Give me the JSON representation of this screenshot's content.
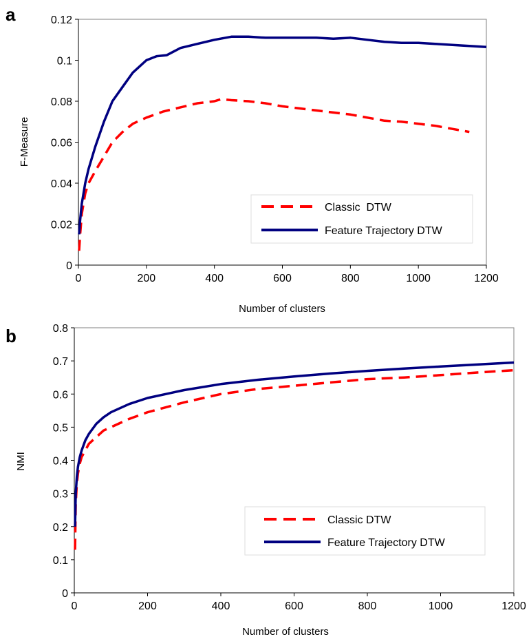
{
  "chart_data": [
    {
      "type": "line",
      "panel_label": "a",
      "title": "",
      "xlabel": "Number of clusters",
      "ylabel": "F-Measure",
      "xlim": [
        0,
        1200
      ],
      "ylim": [
        0,
        0.12
      ],
      "x_ticks": [
        "0",
        "200",
        "400",
        "600",
        "800",
        "1000",
        "1200"
      ],
      "y_ticks": [
        "0",
        "0.02",
        "0.04",
        "0.06",
        "0.08",
        "0.1",
        "0.12"
      ],
      "grid": false,
      "legend": {
        "position": "lower-right",
        "entries": [
          "Classic  DTW",
          "Feature Trajectory DTW"
        ]
      },
      "series": [
        {
          "name": "Classic  DTW",
          "color": "#ff0000",
          "style": "dashed",
          "x": [
            2,
            5,
            10,
            20,
            30,
            50,
            75,
            100,
            130,
            160,
            200,
            250,
            300,
            350,
            400,
            420,
            450,
            500,
            550,
            600,
            650,
            700,
            750,
            800,
            850,
            900,
            950,
            1000,
            1050,
            1100,
            1150
          ],
          "y": [
            0.007,
            0.015,
            0.025,
            0.035,
            0.04,
            0.046,
            0.053,
            0.06,
            0.065,
            0.069,
            0.072,
            0.075,
            0.077,
            0.079,
            0.08,
            0.081,
            0.0805,
            0.08,
            0.079,
            0.0775,
            0.0765,
            0.0755,
            0.0745,
            0.0735,
            0.072,
            0.0705,
            0.07,
            0.069,
            0.068,
            0.0665,
            0.065
          ]
        },
        {
          "name": "Feature Trajectory DTW",
          "color": "#000080",
          "style": "solid",
          "x": [
            2,
            5,
            10,
            20,
            30,
            50,
            75,
            100,
            130,
            160,
            200,
            230,
            260,
            300,
            350,
            400,
            450,
            500,
            550,
            600,
            650,
            700,
            750,
            800,
            850,
            900,
            950,
            1000,
            1050,
            1100,
            1150,
            1200
          ],
          "y": [
            0.015,
            0.022,
            0.03,
            0.04,
            0.047,
            0.058,
            0.07,
            0.08,
            0.087,
            0.094,
            0.1,
            0.102,
            0.1025,
            0.106,
            0.108,
            0.11,
            0.1115,
            0.1115,
            0.111,
            0.111,
            0.111,
            0.111,
            0.1105,
            0.111,
            0.11,
            0.109,
            0.1085,
            0.1085,
            0.108,
            0.1075,
            0.107,
            0.1065
          ]
        }
      ]
    },
    {
      "type": "line",
      "panel_label": "b",
      "title": "",
      "xlabel": "Number of clusters",
      "ylabel": "NMI",
      "xlim": [
        0,
        1200
      ],
      "ylim": [
        0,
        0.8
      ],
      "x_ticks": [
        "0",
        "200",
        "400",
        "600",
        "800",
        "1000",
        "1200"
      ],
      "y_ticks": [
        "0",
        "0.1",
        "0.2",
        "0.3",
        "0.4",
        "0.5",
        "0.6",
        "0.7",
        "0.8"
      ],
      "grid": false,
      "legend": {
        "position": "lower-right",
        "entries": [
          "Classic DTW",
          "Feature Trajectory DTW"
        ]
      },
      "series": [
        {
          "name": "Classic DTW",
          "color": "#ff0000",
          "style": "dashed",
          "x": [
            2,
            4,
            7,
            10,
            15,
            20,
            30,
            40,
            60,
            80,
            100,
            150,
            200,
            300,
            400,
            500,
            600,
            700,
            800,
            900,
            1000,
            1100,
            1200
          ],
          "y": [
            0.13,
            0.27,
            0.33,
            0.36,
            0.39,
            0.41,
            0.43,
            0.45,
            0.47,
            0.49,
            0.5,
            0.525,
            0.545,
            0.575,
            0.6,
            0.615,
            0.625,
            0.635,
            0.645,
            0.65,
            0.657,
            0.665,
            0.672
          ]
        },
        {
          "name": "Feature Trajectory DTW",
          "color": "#000080",
          "style": "solid",
          "x": [
            2,
            4,
            7,
            10,
            15,
            20,
            30,
            40,
            60,
            80,
            100,
            150,
            200,
            300,
            400,
            500,
            600,
            700,
            800,
            900,
            1000,
            1100,
            1200
          ],
          "y": [
            0.2,
            0.3,
            0.35,
            0.38,
            0.41,
            0.43,
            0.46,
            0.48,
            0.51,
            0.53,
            0.545,
            0.57,
            0.588,
            0.612,
            0.63,
            0.643,
            0.653,
            0.662,
            0.67,
            0.677,
            0.683,
            0.689,
            0.695
          ]
        }
      ]
    }
  ]
}
